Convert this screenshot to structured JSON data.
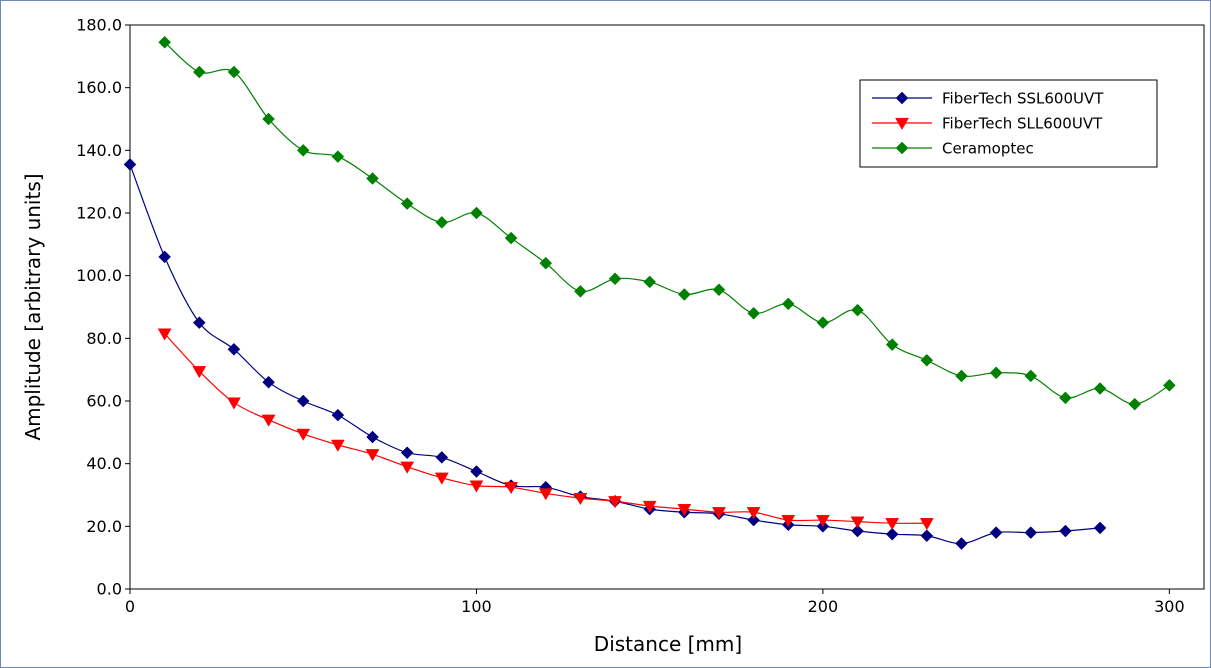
{
  "chart_data": {
    "type": "line",
    "title": "",
    "xlabel": "Distance [mm]",
    "ylabel": "Amplitude [arbitrary units]",
    "xlim": [
      0,
      310
    ],
    "ylim": [
      0,
      180
    ],
    "xticks": [
      0,
      100,
      200,
      300
    ],
    "yticks": [
      0,
      20,
      40,
      60,
      80,
      100,
      120,
      140,
      160,
      180
    ],
    "xtick_labels": [
      "0",
      "100",
      "200",
      "300"
    ],
    "ytick_labels": [
      "0.0",
      "20.0",
      "40.0",
      "60.0",
      "80.0",
      "100.0",
      "120.0",
      "140.0",
      "160.0",
      "180.0"
    ],
    "grid": false,
    "legend_position": "top-right",
    "series": [
      {
        "name": "FiberTech SSL600UVT",
        "color": "#000080",
        "marker": "diamond",
        "x": [
          0,
          10,
          20,
          30,
          40,
          50,
          60,
          70,
          80,
          90,
          100,
          110,
          120,
          130,
          140,
          150,
          160,
          170,
          180,
          190,
          200,
          210,
          220,
          230,
          240,
          250,
          260,
          270,
          280
        ],
        "y": [
          135.5,
          106,
          85,
          76.5,
          66,
          60,
          55.5,
          48.5,
          43.5,
          42,
          37.5,
          33,
          32.5,
          29.5,
          28,
          25.5,
          24.5,
          24,
          22,
          20.5,
          20,
          18.5,
          17.5,
          17,
          14.5,
          18,
          18,
          18.5,
          19.5
        ]
      },
      {
        "name": "FiberTech SLL600UVT",
        "color": "#ff0000",
        "marker": "triangle-down",
        "x": [
          10,
          20,
          30,
          40,
          50,
          60,
          70,
          80,
          90,
          100,
          110,
          120,
          130,
          140,
          150,
          160,
          170,
          180,
          190,
          200,
          210,
          220,
          230
        ],
        "y": [
          81.5,
          69.5,
          59.5,
          54,
          49.5,
          46,
          43,
          39,
          35.5,
          33,
          32.5,
          30.5,
          29,
          28,
          26.5,
          25.5,
          24.5,
          24.5,
          22,
          22,
          21.5,
          21,
          21
        ]
      },
      {
        "name": "Ceramoptec",
        "color": "#008000",
        "marker": "diamond",
        "x": [
          10,
          20,
          30,
          40,
          50,
          60,
          70,
          80,
          90,
          100,
          110,
          120,
          130,
          140,
          150,
          160,
          170,
          180,
          190,
          200,
          210,
          220,
          230,
          240,
          250,
          260,
          270,
          280,
          290,
          300
        ],
        "y": [
          174.5,
          165,
          165,
          150,
          140,
          138,
          131,
          123,
          117,
          120,
          112,
          104,
          95,
          99,
          98,
          94,
          95.5,
          88,
          91,
          85,
          89,
          78,
          73,
          68,
          69,
          68,
          61,
          64,
          59,
          65
        ]
      }
    ]
  }
}
